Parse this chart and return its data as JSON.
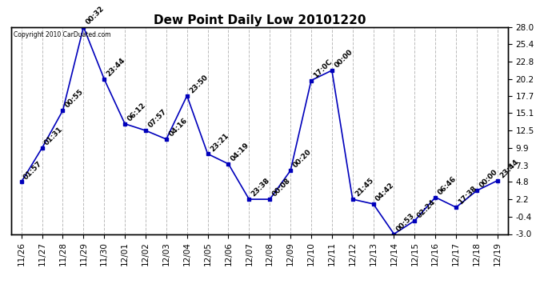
{
  "title": "Dew Point Daily Low 20101220",
  "copyright": "Copyright 2010 CarDuated.com",
  "dates": [
    "11/26",
    "11/27",
    "11/28",
    "11/29",
    "11/30",
    "12/01",
    "12/02",
    "12/03",
    "12/04",
    "12/05",
    "12/06",
    "12/07",
    "12/08",
    "12/09",
    "12/10",
    "12/11",
    "12/12",
    "12/13",
    "12/14",
    "12/15",
    "12/16",
    "12/17",
    "12/18",
    "12/19"
  ],
  "values": [
    4.8,
    9.9,
    15.5,
    28.0,
    20.2,
    13.5,
    12.5,
    11.2,
    17.7,
    9.0,
    7.5,
    2.2,
    2.2,
    6.5,
    20.0,
    21.5,
    2.2,
    1.5,
    -3.0,
    -1.0,
    2.5,
    1.0,
    3.5,
    5.0
  ],
  "labels": [
    "01:57",
    "01:31",
    "00:55",
    "00:32",
    "23:44",
    "06:12",
    "07:57",
    "04:16",
    "23:50",
    "23:21",
    "04:19",
    "23:38",
    "00:08",
    "00:20",
    "17:0C",
    "00:00",
    "21:45",
    "04:42",
    "00:53",
    "02:24",
    "06:46",
    "17:38",
    "00:00",
    "23:44"
  ],
  "yticks_right": [
    28.0,
    25.4,
    22.8,
    20.2,
    17.7,
    15.1,
    12.5,
    9.9,
    7.3,
    4.8,
    2.2,
    -0.4,
    -3.0
  ],
  "ylim": [
    -3.0,
    28.0
  ],
  "line_color": "#0000BB",
  "marker_color": "#0000BB",
  "bg_color": "#FFFFFF",
  "grid_color": "#BBBBBB",
  "title_fontsize": 11,
  "label_fontsize": 6.5,
  "tick_fontsize": 7.5
}
